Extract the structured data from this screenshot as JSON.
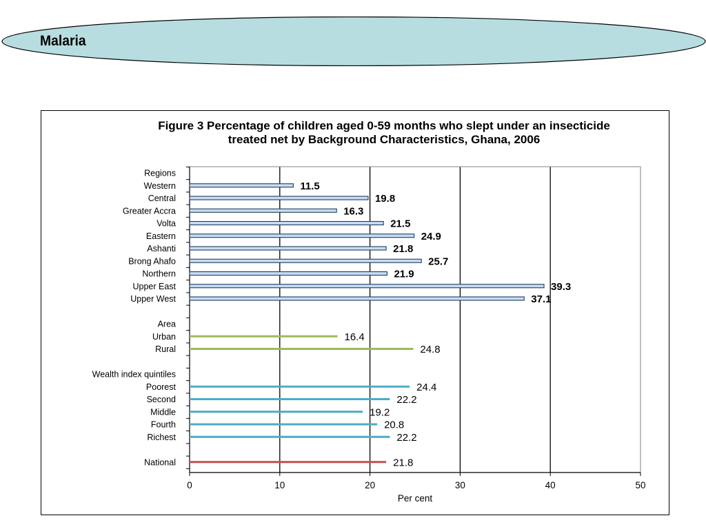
{
  "slide": {
    "title": "Malaria"
  },
  "chart_data": {
    "type": "bar",
    "orientation": "horizontal",
    "title": "Figure 3 Percentage of children aged 0-59 months who slept under an insecticide treated net by Background Characteristics, Ghana, 2006",
    "xlabel": "Per cent",
    "ylabel": "",
    "xlim": [
      0,
      50
    ],
    "xticks": [
      0,
      10,
      20,
      30,
      40,
      50
    ],
    "grid": "vertical lines at 10, 20, 30, 40",
    "legend": "none",
    "categories": [
      "Regions",
      "Western",
      "Central",
      "Greater Accra",
      "Volta",
      "Eastern",
      "Ashanti",
      "Brong Ahafo",
      "Northern",
      "Upper East",
      "Upper West",
      "",
      "Area",
      "Urban",
      "Rural",
      "",
      "Wealth index quintiles",
      "Poorest",
      "Second",
      "Middle",
      "Fourth",
      "Richest",
      "",
      "National"
    ],
    "values": [
      null,
      11.5,
      19.8,
      16.3,
      21.5,
      24.9,
      21.8,
      25.7,
      21.9,
      39.3,
      37.1,
      null,
      null,
      16.4,
      24.8,
      null,
      null,
      24.4,
      22.2,
      19.2,
      20.8,
      22.2,
      null,
      21.8
    ],
    "groups": [
      {
        "name": "Regions",
        "color": "#c6dcf2",
        "style": "outlined",
        "label_weight": "bold"
      },
      {
        "name": "Area",
        "color": "#9bbb59",
        "style": "line",
        "label_weight": "normal"
      },
      {
        "name": "Wealth index quintiles",
        "color": "#4bacc6",
        "style": "line",
        "label_weight": "normal"
      },
      {
        "name": "National",
        "color": "#c0504d",
        "style": "line",
        "label_weight": "normal"
      }
    ]
  }
}
